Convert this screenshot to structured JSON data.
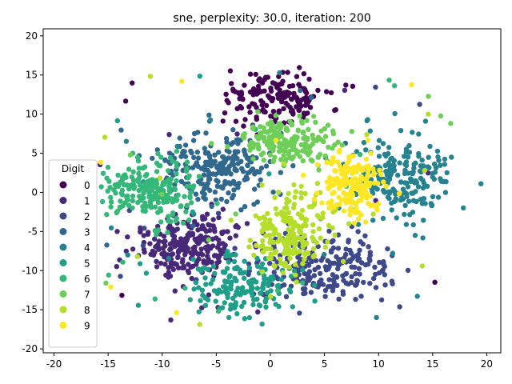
{
  "chart_data": {
    "type": "scatter",
    "title": "sne, perplexity: 30.0, iteration: 200",
    "xlabel": "",
    "ylabel": "",
    "xlim": [
      -21,
      21.3
    ],
    "ylim": [
      -20.5,
      20.9
    ],
    "x_ticks": [
      -20,
      -15,
      -10,
      -5,
      0,
      5,
      10,
      15,
      20
    ],
    "y_ticks": [
      -20,
      -15,
      -10,
      -5,
      0,
      5,
      10,
      15,
      20
    ],
    "grid": false,
    "legend": {
      "title": "Digit",
      "placement": "center-left",
      "entries": [
        "0",
        "1",
        "2",
        "3",
        "4",
        "5",
        "6",
        "7",
        "8",
        "9"
      ]
    },
    "series": [
      {
        "name": "0",
        "color": "#440154",
        "center": [
          0.5,
          12.0
        ],
        "spread": [
          4.2,
          3.0
        ],
        "count": 170
      },
      {
        "name": "1",
        "color": "#482878",
        "center": [
          -7.5,
          -7.0
        ],
        "spread": [
          3.8,
          3.2
        ],
        "count": 250
      },
      {
        "name": "2",
        "color": "#3e4989",
        "center": [
          5.0,
          -9.5
        ],
        "spread": [
          5.0,
          3.5
        ],
        "count": 230
      },
      {
        "name": "3",
        "color": "#31688e",
        "center": [
          -5.0,
          3.0
        ],
        "spread": [
          4.5,
          3.5
        ],
        "count": 230
      },
      {
        "name": "4",
        "color": "#26828e",
        "center": [
          12.5,
          1.5
        ],
        "spread": [
          3.5,
          5.0
        ],
        "count": 220
      },
      {
        "name": "5",
        "color": "#1f9e89",
        "center": [
          -2.5,
          -12.0
        ],
        "spread": [
          4.0,
          3.0
        ],
        "count": 170
      },
      {
        "name": "6",
        "color": "#35b779",
        "center": [
          -11.0,
          0.0
        ],
        "spread": [
          3.8,
          3.5
        ],
        "count": 230
      },
      {
        "name": "7",
        "color": "#6ece58",
        "center": [
          2.0,
          6.5
        ],
        "spread": [
          3.6,
          2.2
        ],
        "count": 190
      },
      {
        "name": "8",
        "color": "#b5de2b",
        "center": [
          1.5,
          -5.0
        ],
        "spread": [
          2.8,
          4.0
        ],
        "count": 230
      },
      {
        "name": "9",
        "color": "#fde725",
        "center": [
          7.5,
          1.0
        ],
        "spread": [
          2.2,
          3.5
        ],
        "count": 190
      }
    ]
  }
}
